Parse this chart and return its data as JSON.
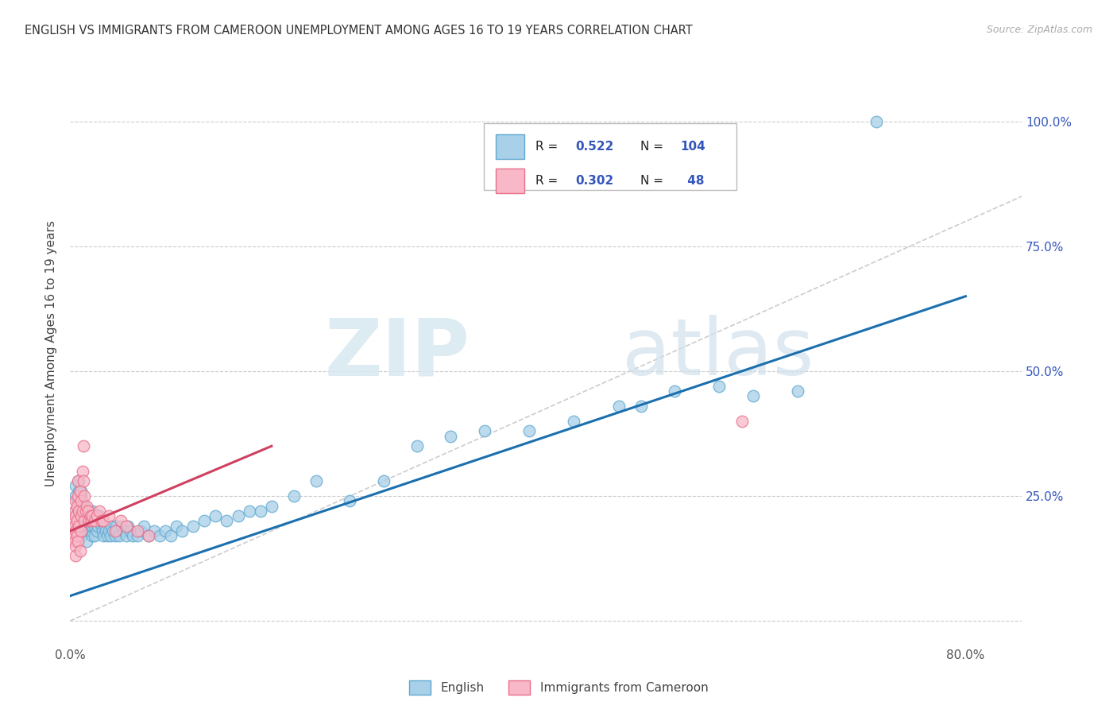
{
  "title": "ENGLISH VS IMMIGRANTS FROM CAMEROON UNEMPLOYMENT AMONG AGES 16 TO 19 YEARS CORRELATION CHART",
  "source": "Source: ZipAtlas.com",
  "ylabel": "Unemployment Among Ages 16 to 19 years",
  "xlim": [
    0.0,
    0.85
  ],
  "ylim": [
    -0.05,
    1.12
  ],
  "ytick_positions": [
    0.0,
    0.25,
    0.5,
    0.75,
    1.0
  ],
  "yticklabels_right": [
    "",
    "25.0%",
    "50.0%",
    "75.0%",
    "100.0%"
  ],
  "english_color": "#a8d0e8",
  "cameroon_color": "#f8b8c8",
  "english_edge": "#5fa8d0",
  "cameroon_edge": "#e8708a",
  "trendline_english_color": "#1a6faf",
  "trendline_cameroon_color": "#d04060",
  "diagonal_color": "#cccccc",
  "legend_text_color": "#3355bb",
  "background_color": "#ffffff",
  "eng_trend_x0": 0.0,
  "eng_trend_y0": 0.05,
  "eng_trend_x1": 0.8,
  "eng_trend_y1": 0.65,
  "cam_trend_x0": 0.0,
  "cam_trend_y0": 0.18,
  "cam_trend_x1": 0.18,
  "cam_trend_y1": 0.35,
  "english_x": [
    0.005,
    0.005,
    0.005,
    0.007,
    0.007,
    0.008,
    0.008,
    0.008,
    0.009,
    0.009,
    0.01,
    0.01,
    0.01,
    0.01,
    0.01,
    0.01,
    0.01,
    0.01,
    0.01,
    0.01,
    0.012,
    0.012,
    0.013,
    0.013,
    0.014,
    0.015,
    0.015,
    0.015,
    0.015,
    0.016,
    0.016,
    0.017,
    0.018,
    0.018,
    0.019,
    0.019,
    0.02,
    0.02,
    0.02,
    0.02,
    0.02,
    0.021,
    0.022,
    0.022,
    0.022,
    0.023,
    0.024,
    0.025,
    0.026,
    0.027,
    0.028,
    0.029,
    0.03,
    0.031,
    0.032,
    0.033,
    0.035,
    0.036,
    0.037,
    0.038,
    0.04,
    0.041,
    0.042,
    0.044,
    0.046,
    0.048,
    0.05,
    0.052,
    0.054,
    0.056,
    0.06,
    0.063,
    0.066,
    0.07,
    0.075,
    0.08,
    0.085,
    0.09,
    0.095,
    0.1,
    0.11,
    0.12,
    0.13,
    0.14,
    0.15,
    0.16,
    0.17,
    0.18,
    0.2,
    0.22,
    0.25,
    0.28,
    0.31,
    0.34,
    0.37,
    0.41,
    0.45,
    0.49,
    0.51,
    0.54,
    0.58,
    0.61,
    0.65,
    0.72
  ],
  "english_y": [
    0.25,
    0.27,
    0.22,
    0.24,
    0.2,
    0.26,
    0.23,
    0.28,
    0.21,
    0.19,
    0.25,
    0.23,
    0.21,
    0.2,
    0.19,
    0.18,
    0.22,
    0.24,
    0.17,
    0.26,
    0.22,
    0.19,
    0.23,
    0.2,
    0.21,
    0.22,
    0.2,
    0.18,
    0.16,
    0.21,
    0.19,
    0.22,
    0.2,
    0.18,
    0.21,
    0.19,
    0.2,
    0.18,
    0.22,
    0.19,
    0.17,
    0.2,
    0.19,
    0.21,
    0.17,
    0.2,
    0.18,
    0.19,
    0.21,
    0.2,
    0.19,
    0.18,
    0.17,
    0.19,
    0.18,
    0.17,
    0.18,
    0.17,
    0.19,
    0.18,
    0.17,
    0.19,
    0.18,
    0.17,
    0.19,
    0.18,
    0.17,
    0.19,
    0.18,
    0.17,
    0.17,
    0.18,
    0.19,
    0.17,
    0.18,
    0.17,
    0.18,
    0.17,
    0.19,
    0.18,
    0.19,
    0.2,
    0.21,
    0.2,
    0.21,
    0.22,
    0.22,
    0.23,
    0.25,
    0.28,
    0.24,
    0.28,
    0.35,
    0.37,
    0.38,
    0.38,
    0.4,
    0.43,
    0.43,
    0.46,
    0.47,
    0.45,
    0.46,
    1.0
  ],
  "cameroon_x": [
    0.003,
    0.003,
    0.004,
    0.004,
    0.004,
    0.005,
    0.005,
    0.005,
    0.005,
    0.005,
    0.006,
    0.006,
    0.006,
    0.007,
    0.007,
    0.007,
    0.008,
    0.008,
    0.009,
    0.009,
    0.01,
    0.01,
    0.01,
    0.011,
    0.011,
    0.012,
    0.012,
    0.013,
    0.013,
    0.014,
    0.015,
    0.016,
    0.017,
    0.018,
    0.019,
    0.02,
    0.022,
    0.024,
    0.026,
    0.028,
    0.03,
    0.035,
    0.04,
    0.045,
    0.05,
    0.06,
    0.07,
    0.6
  ],
  "cameroon_y": [
    0.17,
    0.2,
    0.16,
    0.22,
    0.19,
    0.15,
    0.18,
    0.21,
    0.24,
    0.13,
    0.2,
    0.23,
    0.17,
    0.25,
    0.28,
    0.16,
    0.22,
    0.19,
    0.26,
    0.14,
    0.24,
    0.21,
    0.18,
    0.3,
    0.22,
    0.35,
    0.28,
    0.25,
    0.2,
    0.22,
    0.23,
    0.22,
    0.2,
    0.21,
    0.2,
    0.21,
    0.2,
    0.21,
    0.22,
    0.2,
    0.2,
    0.21,
    0.18,
    0.2,
    0.19,
    0.18,
    0.17,
    0.4
  ]
}
